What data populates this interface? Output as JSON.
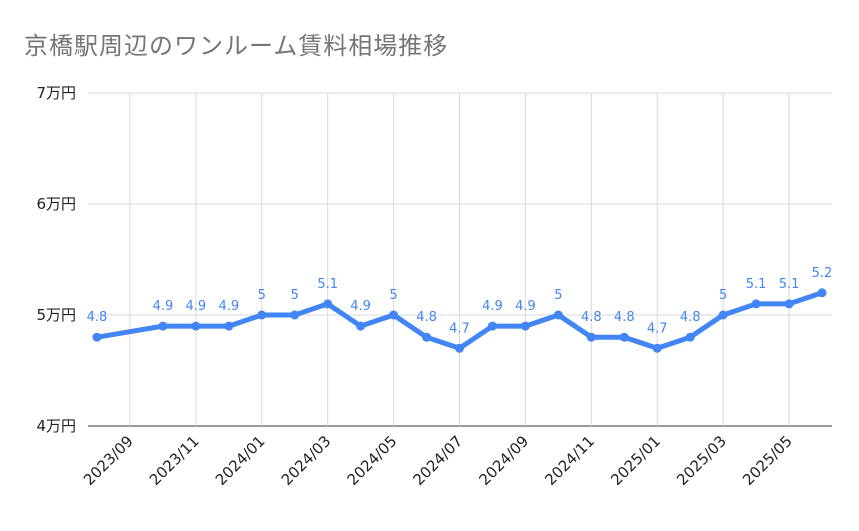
{
  "chart_data": {
    "type": "line",
    "title": "京橋駅周辺のワンルーム賃料相場推移",
    "xlabel": "",
    "ylabel": "",
    "ylim": [
      4,
      7
    ],
    "yticks": [
      4,
      5,
      6,
      7
    ],
    "ytick_labels": [
      "4万円",
      "5万円",
      "6万円",
      "7万円"
    ],
    "x": [
      "2023/08",
      "2023/10",
      "2023/11",
      "2023/12",
      "2024/01",
      "2024/02",
      "2024/03",
      "2024/04",
      "2024/05",
      "2024/06",
      "2024/07",
      "2024/08",
      "2024/09",
      "2024/10",
      "2024/11",
      "2024/12",
      "2025/01",
      "2025/02",
      "2025/03",
      "2025/04",
      "2025/05",
      "2025/06"
    ],
    "xticks": [
      "2023/09",
      "2023/11",
      "2024/01",
      "2024/03",
      "2024/05",
      "2024/07",
      "2024/09",
      "2024/11",
      "2025/01",
      "2025/03",
      "2025/05"
    ],
    "series": [
      {
        "values": [
          4.8,
          4.9,
          4.9,
          4.9,
          5,
          5,
          5.1,
          4.9,
          5,
          4.8,
          4.7,
          4.9,
          4.9,
          5,
          4.8,
          4.8,
          4.7,
          4.8,
          5,
          5.1,
          5.1,
          5.2
        ],
        "labels": [
          "4.8",
          "4.9",
          "4.9",
          "4.9",
          "5",
          "5",
          "5.1",
          "4.9",
          "5",
          "4.8",
          "4.7",
          "4.9",
          "4.9",
          "5",
          "4.8",
          "4.8",
          "4.7",
          "4.8",
          "5",
          "5.1",
          "5.1",
          "5.2"
        ],
        "color": "#4285f4"
      }
    ],
    "grid": true,
    "legend": "none"
  }
}
